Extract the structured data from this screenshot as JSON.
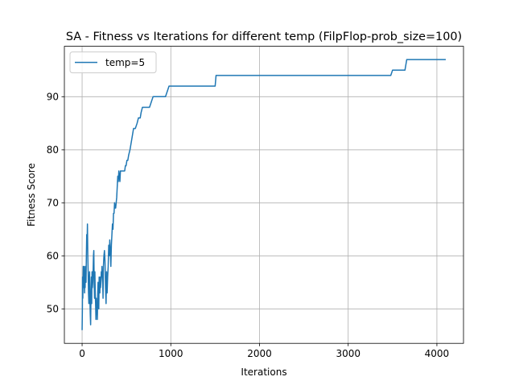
{
  "chart_data": {
    "type": "line",
    "title": "SA - Fitness vs Iterations for different temp (FilpFlop-prob_size=100)",
    "xlabel": "Iterations",
    "ylabel": "Fitness Score",
    "xlim": [
      -200,
      4300
    ],
    "ylim": [
      43.5,
      99.5
    ],
    "xticks": [
      0,
      1000,
      2000,
      3000,
      4000
    ],
    "yticks": [
      50,
      60,
      70,
      80,
      90
    ],
    "grid": true,
    "legend": "upper-left",
    "colors": {
      "series": "#1f77b4"
    },
    "series": [
      {
        "name": "temp=5",
        "x": [
          0,
          3,
          5,
          8,
          10,
          13,
          16,
          19,
          22,
          25,
          28,
          31,
          34,
          37,
          40,
          44,
          48,
          52,
          56,
          60,
          64,
          68,
          72,
          76,
          80,
          84,
          88,
          92,
          96,
          100,
          104,
          108,
          112,
          116,
          120,
          124,
          128,
          132,
          136,
          140,
          144,
          148,
          152,
          156,
          160,
          164,
          168,
          172,
          176,
          180,
          184,
          188,
          192,
          196,
          200,
          204,
          208,
          212,
          216,
          220,
          224,
          228,
          232,
          236,
          240,
          246,
          252,
          258,
          264,
          270,
          276,
          282,
          288,
          294,
          300,
          306,
          312,
          318,
          324,
          330,
          336,
          342,
          348,
          354,
          360,
          366,
          372,
          378,
          384,
          390,
          396,
          402,
          408,
          414,
          420,
          426,
          432,
          440,
          448,
          456,
          464,
          472,
          480,
          488,
          496,
          505,
          515,
          525,
          540,
          560,
          580,
          600,
          620,
          635,
          645,
          655,
          665,
          680,
          700,
          720,
          740,
          760,
          780,
          800,
          830,
          860,
          900,
          940,
          960,
          980,
          1000,
          1010,
          1100,
          1300,
          1500,
          1510,
          2000,
          3000,
          3480,
          3500,
          3640,
          3660,
          4000,
          4100
        ],
        "y": [
          46,
          50,
          56,
          52,
          55,
          58,
          54,
          56,
          58,
          55,
          53,
          57,
          54,
          58,
          56,
          55,
          60,
          64,
          62,
          66,
          60,
          57,
          53,
          51,
          55,
          57,
          52,
          49,
          47,
          53,
          56,
          51,
          57,
          54,
          55,
          57,
          60,
          61,
          55,
          52,
          57,
          53,
          51,
          48,
          52,
          49,
          51,
          48,
          53,
          55,
          51,
          50,
          56,
          54,
          53,
          56,
          54,
          55,
          57,
          56,
          58,
          56,
          55,
          52,
          58,
          60,
          61,
          59,
          54,
          51,
          57,
          53,
          56,
          58,
          62,
          60,
          63,
          61,
          58,
          62,
          64,
          66,
          65,
          68,
          68,
          70,
          69,
          69,
          70,
          71,
          73,
          75,
          74,
          76,
          75,
          74,
          76,
          76,
          76,
          76,
          76,
          76,
          76,
          77,
          77,
          78,
          78,
          79,
          80,
          82,
          84,
          84,
          85,
          86,
          86,
          86,
          87,
          88,
          88,
          88,
          88,
          88,
          89,
          90,
          90,
          90,
          90,
          90,
          91,
          92,
          92,
          92,
          92,
          92,
          92,
          94,
          94,
          94,
          94,
          95,
          95,
          97,
          97,
          97
        ]
      }
    ]
  }
}
